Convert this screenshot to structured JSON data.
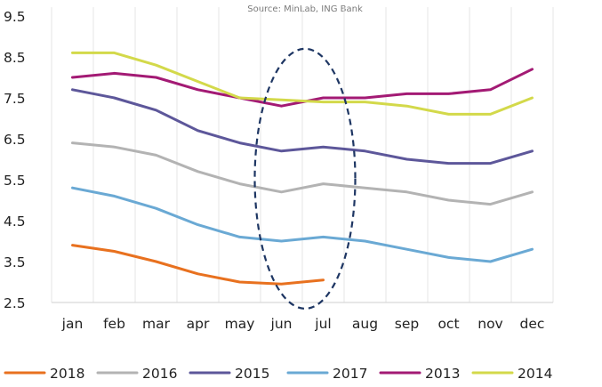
{
  "source": "Source: MinLab, ING Bank",
  "chart_data": {
    "type": "line",
    "categories": [
      "jan",
      "feb",
      "mar",
      "apr",
      "may",
      "jun",
      "jul",
      "aug",
      "sep",
      "oct",
      "nov",
      "dec"
    ],
    "ylim": [
      2.5,
      9.5
    ],
    "yticks": [
      "2.5",
      "3.5",
      "4.5",
      "5.5",
      "6.5",
      "7.5",
      "8.5",
      "9.5"
    ],
    "grid": "vertical",
    "legend_position": "bottom",
    "series": [
      {
        "name": "2018",
        "color": "#e8711f",
        "values": [
          3.9,
          3.75,
          3.5,
          3.2,
          3.0,
          2.95,
          3.05,
          null,
          null,
          null,
          null,
          null
        ]
      },
      {
        "name": "2016",
        "color": "#b3b3b3",
        "values": [
          6.4,
          6.3,
          6.1,
          5.7,
          5.4,
          5.2,
          5.4,
          5.3,
          5.2,
          5.0,
          4.9,
          5.2
        ]
      },
      {
        "name": "2015",
        "color": "#5d579a",
        "values": [
          7.7,
          7.5,
          7.2,
          6.7,
          6.4,
          6.2,
          6.3,
          6.2,
          6.0,
          5.9,
          5.9,
          6.2
        ]
      },
      {
        "name": "2017",
        "color": "#6aa9d4",
        "values": [
          5.3,
          5.1,
          4.8,
          4.4,
          4.1,
          4.0,
          4.1,
          4.0,
          3.8,
          3.6,
          3.5,
          3.8
        ]
      },
      {
        "name": "2013",
        "color": "#a31a74",
        "values": [
          8.0,
          8.1,
          8.0,
          7.7,
          7.5,
          7.3,
          7.5,
          7.5,
          7.6,
          7.6,
          7.7,
          8.2
        ]
      },
      {
        "name": "2014",
        "color": "#d3d94a",
        "values": [
          8.6,
          8.6,
          8.3,
          7.9,
          7.5,
          7.45,
          7.4,
          7.4,
          7.3,
          7.1,
          7.1,
          7.5
        ]
      }
    ],
    "annotation": {
      "shape": "dashed-ellipse",
      "color": "#1e3663",
      "x_from": "jun",
      "x_to": "jul",
      "y_from": 2.35,
      "y_to": 8.7
    }
  }
}
